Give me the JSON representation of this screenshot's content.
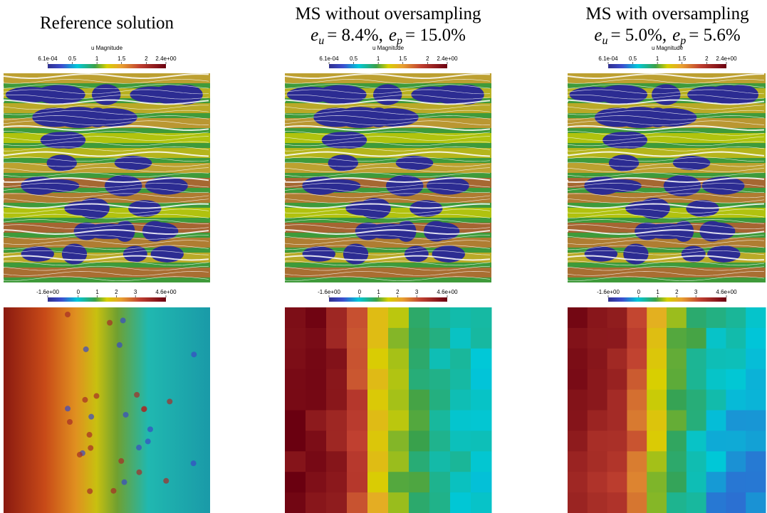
{
  "panels": [
    {
      "title": "Reference solution"
    },
    {
      "title": "MS without oversampling",
      "errors": [
        {
          "symbol": "e",
          "sub": "u",
          "text": "= 8.4%,"
        },
        {
          "symbol": "e",
          "sub": "p",
          "text": "= 15.0%"
        }
      ]
    },
    {
      "title": "MS with oversampling",
      "errors": [
        {
          "symbol": "e",
          "sub": "u",
          "text": "= 5.0%,"
        },
        {
          "symbol": "e",
          "sub": "p",
          "text": "= 5.6%"
        }
      ]
    }
  ],
  "velocity_colorbar": {
    "title": "u Magnitude",
    "range": [
      0.00061,
      2.4
    ],
    "ticks": [
      {
        "value": 0.00061,
        "label": "6.1e-04"
      },
      0.5,
      1,
      1.5,
      2,
      {
        "value": 2.4,
        "label": "2.4e+00"
      }
    ]
  },
  "pressure_colorbar": {
    "range": [
      -1.6,
      4.6
    ],
    "ticks": [
      {
        "value": -1.6,
        "label": "-1.6e+00"
      },
      0,
      1,
      2,
      3,
      {
        "value": 4.6,
        "label": "4.6e+00"
      }
    ]
  }
}
